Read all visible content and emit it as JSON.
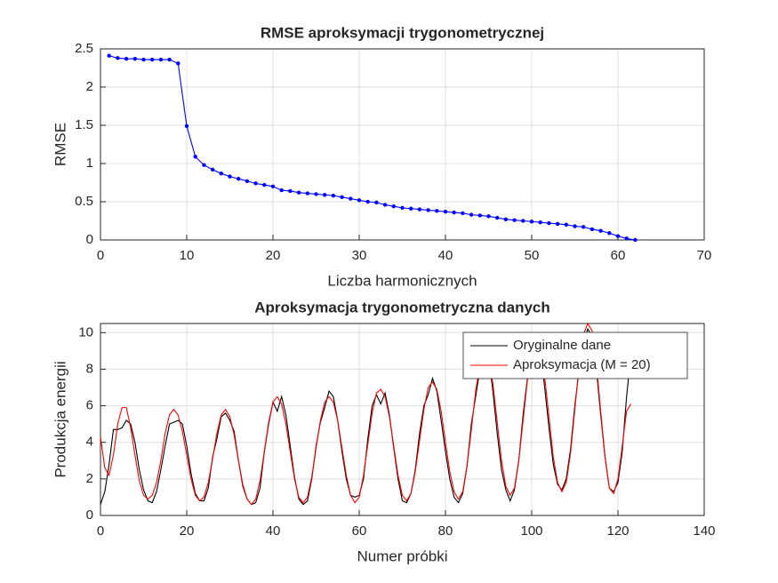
{
  "chart_data": [
    {
      "type": "line",
      "title": "RMSE aproksymacji trygonometrycznej",
      "xlabel": "Liczba harmonicznych",
      "ylabel": "RMSE",
      "x": [
        1,
        2,
        3,
        4,
        5,
        6,
        7,
        8,
        9,
        10,
        11,
        12,
        13,
        14,
        15,
        16,
        17,
        18,
        19,
        20,
        21,
        22,
        23,
        24,
        25,
        26,
        27,
        28,
        29,
        30,
        31,
        32,
        33,
        34,
        35,
        36,
        37,
        38,
        39,
        40,
        41,
        42,
        43,
        44,
        45,
        46,
        47,
        48,
        49,
        50,
        51,
        52,
        53,
        54,
        55,
        56,
        57,
        58,
        59,
        60,
        61,
        62
      ],
      "series": [
        {
          "color": "#0000ff",
          "marker": ".",
          "values": [
            2.41,
            2.38,
            2.37,
            2.37,
            2.36,
            2.36,
            2.36,
            2.36,
            2.31,
            1.49,
            1.09,
            0.98,
            0.92,
            0.87,
            0.83,
            0.8,
            0.77,
            0.74,
            0.72,
            0.7,
            0.65,
            0.64,
            0.62,
            0.61,
            0.6,
            0.59,
            0.58,
            0.56,
            0.54,
            0.52,
            0.5,
            0.49,
            0.46,
            0.44,
            0.42,
            0.41,
            0.4,
            0.39,
            0.38,
            0.37,
            0.36,
            0.35,
            0.33,
            0.32,
            0.31,
            0.29,
            0.27,
            0.26,
            0.25,
            0.24,
            0.23,
            0.22,
            0.21,
            0.2,
            0.18,
            0.17,
            0.14,
            0.12,
            0.09,
            0.05,
            0.02,
            0.0
          ]
        }
      ],
      "xlim": [
        0,
        70
      ],
      "xticks": [
        0,
        10,
        20,
        30,
        40,
        50,
        60,
        70
      ],
      "ylim": [
        0,
        2.5
      ],
      "yticks": [
        0,
        0.5,
        1,
        1.5,
        2,
        2.5
      ],
      "grid": true
    },
    {
      "type": "line",
      "title": "Aproksymacja trygonometryczna danych",
      "xlabel": "Numer próbki",
      "ylabel": "Produkcja energii",
      "x": [
        0,
        1,
        2,
        3,
        4,
        5,
        6,
        7,
        8,
        9,
        10,
        11,
        12,
        13,
        14,
        15,
        16,
        17,
        18,
        19,
        20,
        21,
        22,
        23,
        24,
        25,
        26,
        27,
        28,
        29,
        30,
        31,
        32,
        33,
        34,
        35,
        36,
        37,
        38,
        39,
        40,
        41,
        42,
        43,
        44,
        45,
        46,
        47,
        48,
        49,
        50,
        51,
        52,
        53,
        54,
        55,
        56,
        57,
        58,
        59,
        60,
        61,
        62,
        63,
        64,
        65,
        66,
        67,
        68,
        69,
        70,
        71,
        72,
        73,
        74,
        75,
        76,
        77,
        78,
        79,
        80,
        81,
        82,
        83,
        84,
        85,
        86,
        87,
        88,
        89,
        90,
        91,
        92,
        93,
        94,
        95,
        96,
        97,
        98,
        99,
        100,
        101,
        102,
        103,
        104,
        105,
        106,
        107,
        108,
        109,
        110,
        111,
        112,
        113,
        114,
        115,
        116,
        117,
        118,
        119,
        120,
        121,
        122,
        123
      ],
      "series": [
        {
          "name": "Oryginalne dane",
          "color": "#000000",
          "values": [
            0.6,
            1.3,
            2.8,
            4.7,
            4.7,
            4.8,
            5.2,
            5.0,
            4.0,
            2.5,
            1.4,
            0.8,
            0.7,
            1.3,
            2.5,
            3.8,
            5.0,
            5.1,
            5.2,
            5.0,
            3.8,
            2.3,
            1.2,
            0.8,
            0.8,
            1.5,
            3.2,
            4.2,
            5.4,
            5.6,
            5.2,
            4.6,
            3.0,
            1.6,
            0.9,
            0.6,
            0.7,
            1.5,
            3.5,
            5.0,
            6.2,
            5.7,
            6.5,
            5.5,
            3.8,
            2.1,
            0.9,
            0.6,
            0.8,
            2.0,
            3.8,
            5.1,
            5.9,
            6.8,
            6.5,
            5.2,
            3.5,
            2.0,
            1.1,
            1.0,
            1.1,
            2.0,
            4.2,
            6.0,
            6.6,
            6.1,
            6.7,
            5.5,
            3.7,
            2.0,
            0.8,
            0.7,
            1.2,
            2.5,
            4.5,
            6.0,
            6.6,
            7.5,
            6.8,
            5.2,
            3.5,
            2.0,
            1.0,
            0.7,
            1.2,
            2.7,
            5.0,
            6.5,
            8.0,
            9.2,
            8.7,
            6.8,
            4.5,
            2.5,
            1.4,
            0.8,
            1.4,
            3.0,
            5.5,
            7.5,
            9.0,
            9.8,
            9.2,
            7.0,
            4.8,
            2.8,
            1.7,
            1.4,
            2.0,
            3.6,
            6.0,
            8.0,
            9.5,
            10.2,
            9.8,
            8.0,
            5.5,
            3.2,
            1.5,
            1.3,
            1.8,
            3.5,
            6.5,
            8.8
          ]
        },
        {
          "name": "Aproksymacja (M = 20)",
          "color": "#ff0000",
          "values": [
            4.3,
            2.6,
            2.2,
            3.3,
            5.0,
            5.9,
            5.9,
            4.8,
            3.3,
            1.9,
            1.1,
            0.9,
            1.1,
            1.8,
            3.0,
            4.5,
            5.5,
            5.8,
            5.5,
            4.6,
            3.3,
            2.0,
            1.1,
            0.8,
            1.0,
            1.8,
            3.1,
            4.5,
            5.5,
            5.8,
            5.4,
            4.4,
            3.0,
            1.7,
            0.9,
            0.6,
            0.9,
            1.9,
            3.5,
            5.1,
            6.2,
            6.5,
            6.1,
            5.0,
            3.5,
            2.0,
            1.0,
            0.7,
            1.0,
            2.1,
            3.7,
            5.2,
            6.2,
            6.5,
            6.2,
            5.2,
            3.7,
            2.2,
            1.1,
            0.7,
            1.0,
            2.2,
            3.9,
            5.6,
            6.7,
            6.9,
            6.5,
            5.4,
            3.8,
            2.2,
            1.1,
            0.8,
            1.2,
            2.4,
            4.1,
            5.8,
            7.0,
            7.3,
            6.9,
            5.7,
            4.0,
            2.4,
            1.3,
            0.9,
            1.3,
            2.7,
            4.7,
            6.8,
            8.3,
            8.9,
            8.6,
            7.2,
            5.1,
            3.0,
            1.6,
            1.1,
            1.5,
            3.0,
            5.2,
            7.4,
            9.0,
            9.6,
            9.2,
            7.6,
            5.4,
            3.2,
            1.8,
            1.3,
            1.8,
            3.4,
            5.8,
            8.2,
            9.9,
            10.5,
            10.1,
            8.3,
            5.7,
            3.2,
            1.5,
            1.2,
            2.0,
            3.8,
            5.7,
            6.1
          ]
        }
      ],
      "xlim": [
        0,
        140
      ],
      "xticks": [
        0,
        20,
        40,
        60,
        80,
        100,
        120,
        140
      ],
      "ylim": [
        0,
        10.5
      ],
      "yticks": [
        0,
        2,
        4,
        6,
        8,
        10
      ],
      "grid": true,
      "legend": "northeast"
    }
  ]
}
